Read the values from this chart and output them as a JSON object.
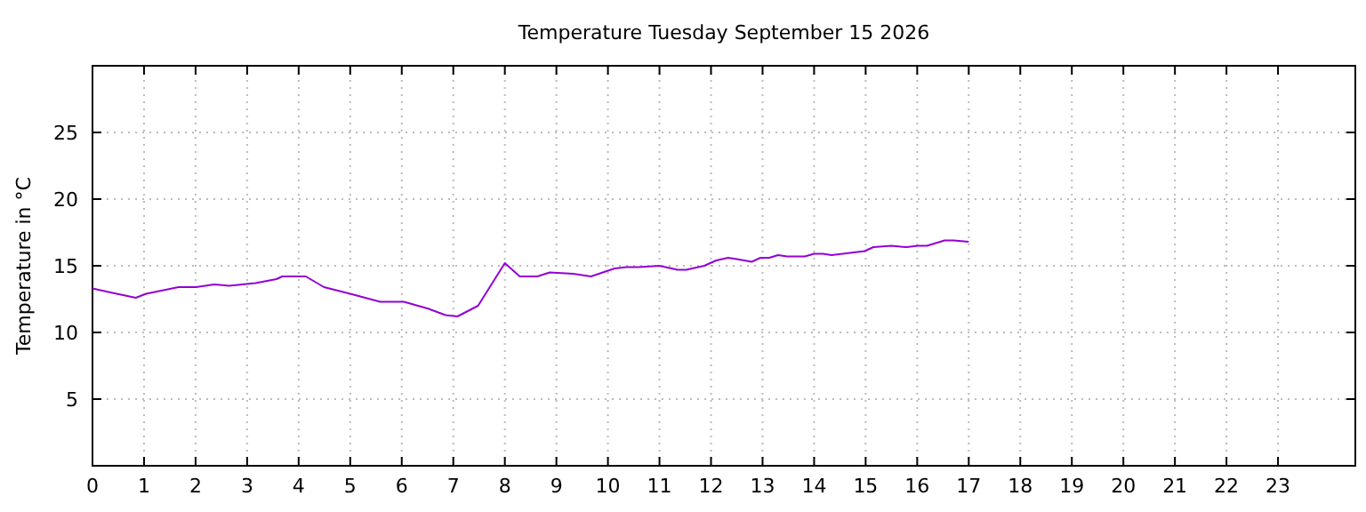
{
  "chart_data": {
    "type": "line",
    "title": "Temperature Tuesday September 15 2026",
    "ylabel": "Temperature in °C",
    "xlim": [
      0,
      24.5
    ],
    "xticks": [
      0,
      1,
      2,
      3,
      4,
      5,
      6,
      7,
      8,
      9,
      10,
      11,
      12,
      13,
      14,
      15,
      16,
      17,
      18,
      19,
      20,
      21,
      22,
      23
    ],
    "ylim": [
      0,
      30
    ],
    "yticks": [
      5,
      10,
      15,
      20,
      25
    ],
    "grid": true,
    "line_style": "solid",
    "marker": "none",
    "series": [
      {
        "color": "#9400d3",
        "x": [
          0,
          0.35,
          0.84,
          1.04,
          1.67,
          2.01,
          2.36,
          2.65,
          3.16,
          3.57,
          3.68,
          4.14,
          4.49,
          5.0,
          5.58,
          6.04,
          6.5,
          6.85,
          7.08,
          7.48,
          8.0,
          8.29,
          8.63,
          8.87,
          9.33,
          9.67,
          10.13,
          10.36,
          10.6,
          11.0,
          11.35,
          11.52,
          11.87,
          12.1,
          12.33,
          12.5,
          12.79,
          12.96,
          13.13,
          13.3,
          13.48,
          13.82,
          14.0,
          14.17,
          14.34,
          14.98,
          15.15,
          15.5,
          15.79,
          16.02,
          16.19,
          16.53,
          16.71,
          17.0
        ],
        "values": [
          13.3,
          13.0,
          12.6,
          12.9,
          13.4,
          13.4,
          13.6,
          13.5,
          13.7,
          14.0,
          14.2,
          14.2,
          13.4,
          12.9,
          12.3,
          12.3,
          11.8,
          11.3,
          11.2,
          12.0,
          15.2,
          14.2,
          14.2,
          14.5,
          14.4,
          14.2,
          14.8,
          14.9,
          14.9,
          15.0,
          14.7,
          14.7,
          15.0,
          15.4,
          15.6,
          15.5,
          15.3,
          15.6,
          15.6,
          15.8,
          15.7,
          15.7,
          15.9,
          15.9,
          15.8,
          16.1,
          16.4,
          16.5,
          16.4,
          16.5,
          16.5,
          16.9,
          16.9,
          16.8
        ]
      }
    ]
  }
}
